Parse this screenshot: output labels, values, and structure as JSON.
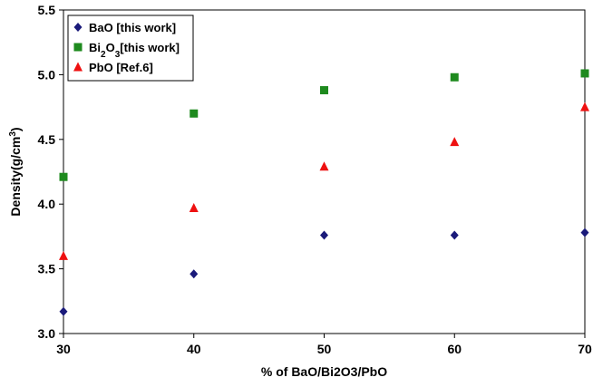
{
  "chart_data": {
    "type": "scatter",
    "title": "",
    "xlabel": "% of BaO/Bi2O3/PbO",
    "ylabel": "Density(g/cm3)",
    "xlim": [
      30,
      70
    ],
    "ylim": [
      3.0,
      5.5
    ],
    "xticks": [
      "30",
      "40",
      "50",
      "60",
      "70"
    ],
    "yticks": [
      "3.0",
      "3.5",
      "4.0",
      "4.5",
      "5.0",
      "5.5"
    ],
    "grid": false,
    "legend_position": "top-left",
    "series": [
      {
        "name": "BaO [this work]",
        "marker": "diamond",
        "color": "#1a1a7a",
        "x": [
          30,
          40,
          50,
          60,
          70
        ],
        "y": [
          3.17,
          3.46,
          3.76,
          3.76,
          3.78
        ]
      },
      {
        "name": "Bi2O3[this work]",
        "marker": "square",
        "color": "#1e8a1e",
        "x": [
          30,
          40,
          50,
          60,
          70
        ],
        "y": [
          4.21,
          4.7,
          4.88,
          4.98,
          5.01
        ]
      },
      {
        "name": "PbO [Ref.6]",
        "marker": "triangle",
        "color": "#ee1111",
        "x": [
          30,
          40,
          50,
          60,
          70
        ],
        "y": [
          3.6,
          3.97,
          4.29,
          4.48,
          4.75
        ]
      }
    ]
  }
}
